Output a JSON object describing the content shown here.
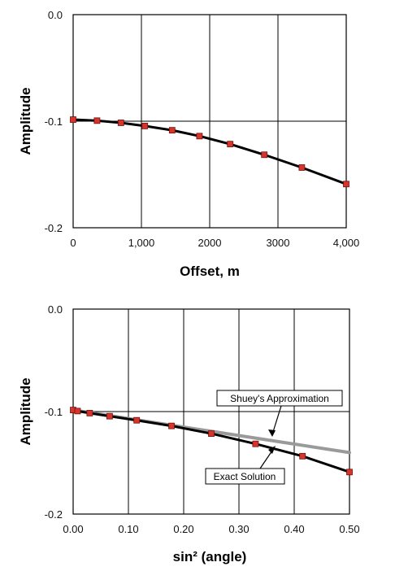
{
  "chart_data": [
    {
      "type": "line",
      "xlabel": "Offset, m",
      "ylabel": "Amplitude",
      "xlim": [
        0,
        4000
      ],
      "ylim": [
        -0.2,
        0.0
      ],
      "x_ticks": [
        "0",
        "1,000",
        "2000",
        "3000",
        "4,000"
      ],
      "y_ticks": [
        "0.0",
        "-0.1",
        "-0.2"
      ],
      "grid": true,
      "series": [
        {
          "x": [
            0,
            350,
            700,
            1050,
            1450,
            1850,
            2300,
            2800,
            3350,
            4000
          ],
          "y": [
            -0.0985,
            -0.0995,
            -0.1015,
            -0.1045,
            -0.1085,
            -0.114,
            -0.1215,
            -0.1315,
            -0.1435,
            -0.159
          ]
        }
      ]
    },
    {
      "type": "line",
      "xlabel": "sin² (angle)",
      "ylabel": "Amplitude",
      "xlim": [
        0,
        0.5
      ],
      "ylim": [
        -0.2,
        0.0
      ],
      "x_ticks": [
        "0.00",
        "0.10",
        "0.20",
        "0.30",
        "0.40",
        "0.50"
      ],
      "y_ticks": [
        "0.0",
        "-0.1",
        "-0.2"
      ],
      "grid": true,
      "series": [
        {
          "name": "Exact Solution",
          "x": [
            0.0,
            0.008,
            0.03,
            0.066,
            0.115,
            0.178,
            0.25,
            0.33,
            0.415,
            0.5
          ],
          "y": [
            -0.0985,
            -0.0995,
            -0.1015,
            -0.1045,
            -0.1085,
            -0.114,
            -0.1215,
            -0.1315,
            -0.1435,
            -0.159
          ]
        },
        {
          "name": "Shuey's Approximation",
          "x": [
            0.0,
            0.5
          ],
          "y": [
            -0.0985,
            -0.14
          ]
        }
      ],
      "annotations": [
        "Shuey's Approximation",
        "Exact Solution"
      ]
    }
  ]
}
